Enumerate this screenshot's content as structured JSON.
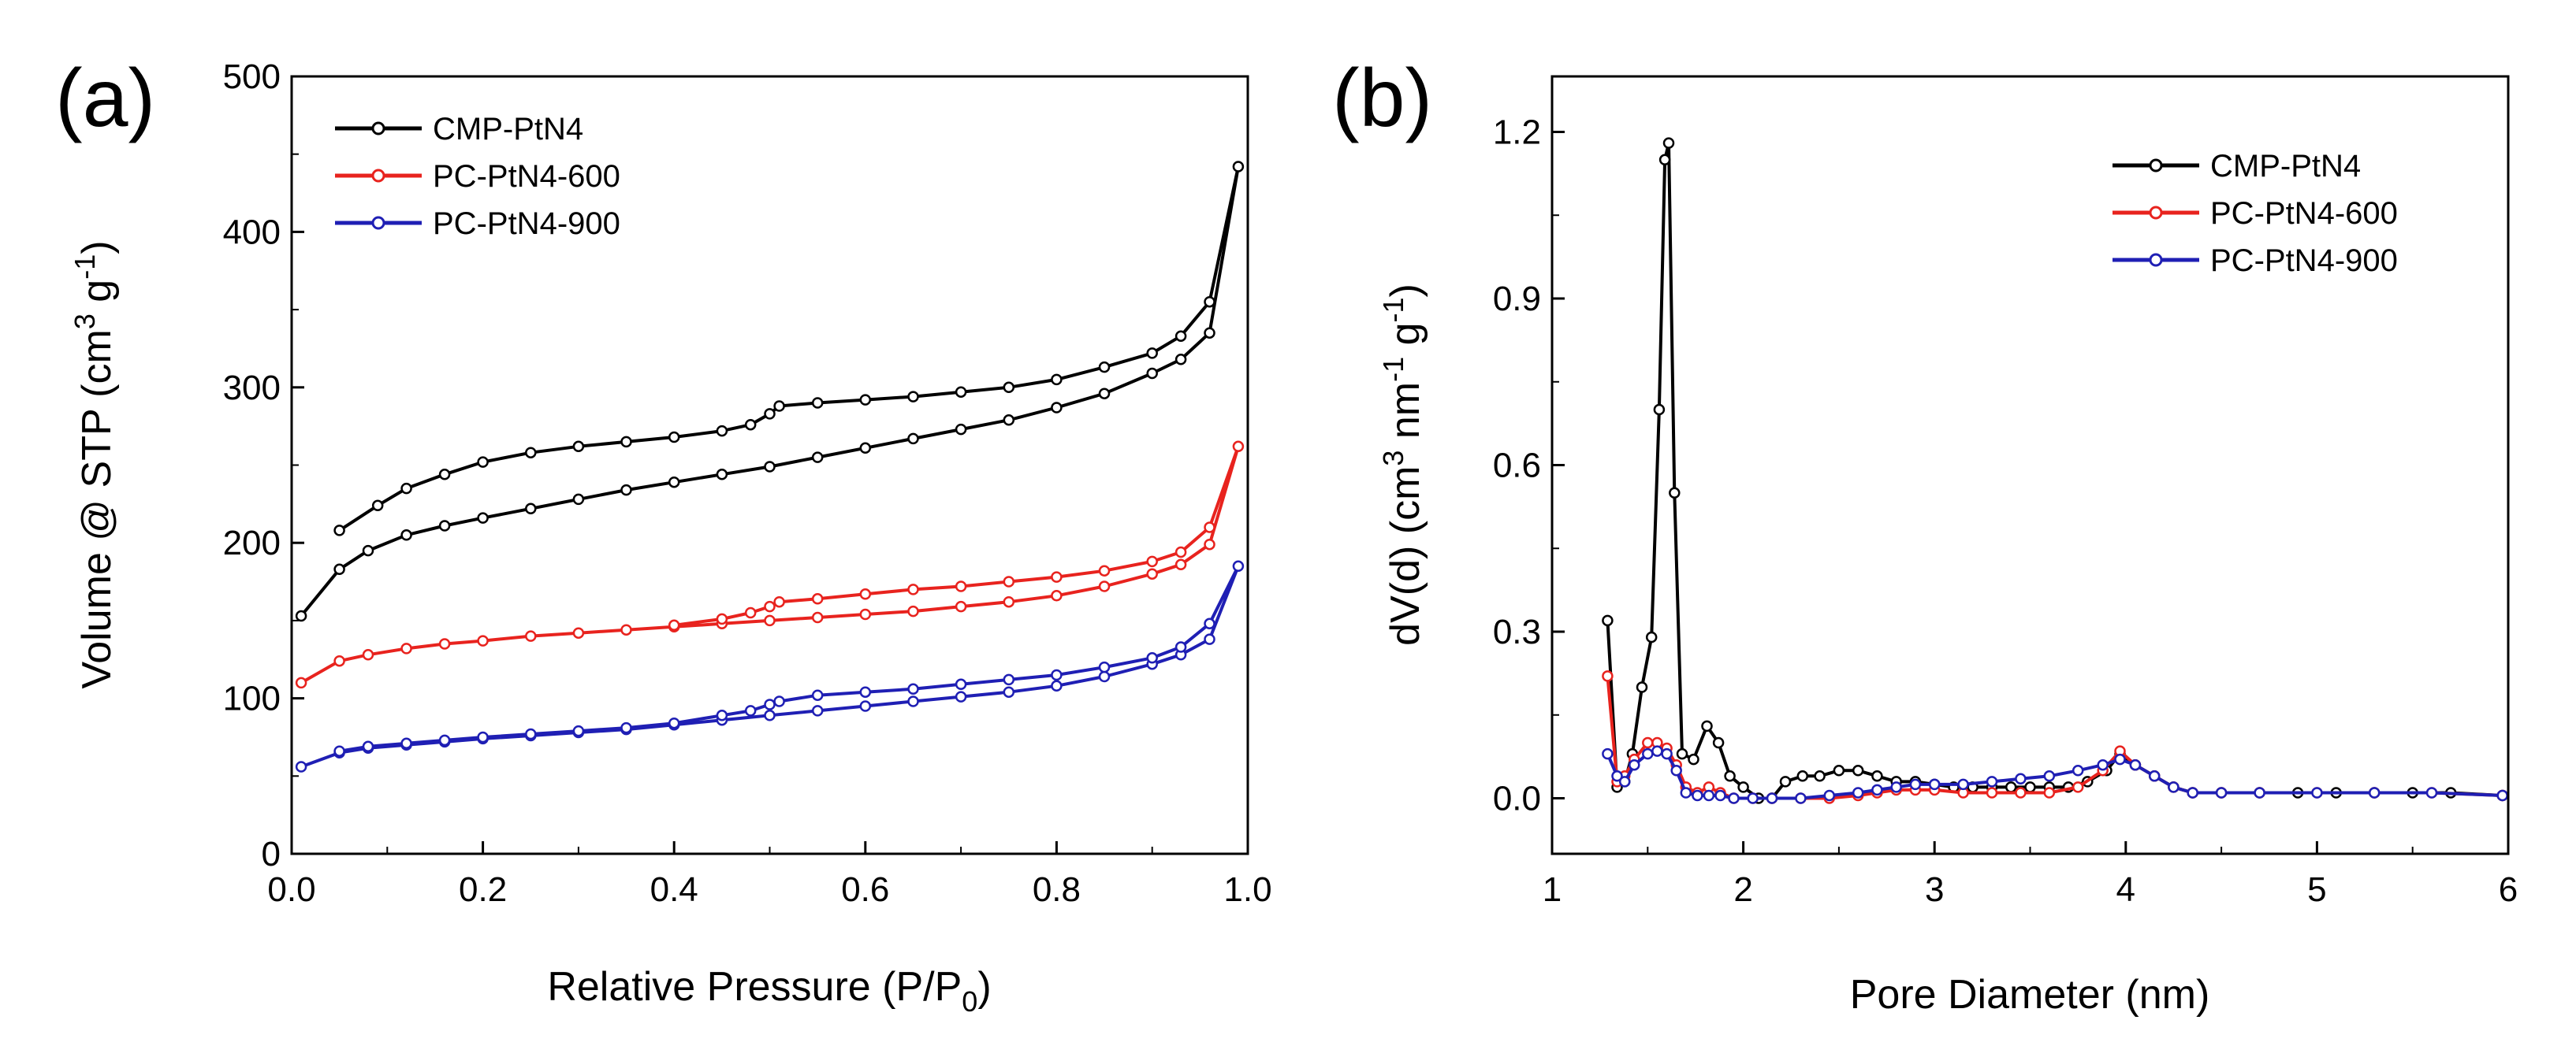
{
  "chart_data": [
    {
      "type": "line",
      "panel_label": "(a)",
      "xlabel": "Relative Pressure (P/P",
      "xlabel_sub": "0",
      "xlabel_end": ")",
      "ylabel": "Volume @ STP (cm",
      "ylabel_sup1": "3",
      "ylabel_mid": " g",
      "ylabel_sup2": "-1",
      "ylabel_end": ")",
      "xlim": [
        0.0,
        1.0
      ],
      "ylim": [
        0,
        500
      ],
      "xticks": [
        "0.0",
        "0.2",
        "0.4",
        "0.6",
        "0.8",
        "1.0"
      ],
      "yticks": [
        "0",
        "100",
        "200",
        "300",
        "400",
        "500"
      ],
      "legend_position": "top-left",
      "series": [
        {
          "name": "CMP-PtN4",
          "color": "#000000",
          "x": [
            0.01,
            0.05,
            0.08,
            0.12,
            0.16,
            0.2,
            0.25,
            0.3,
            0.35,
            0.4,
            0.45,
            0.5,
            0.55,
            0.6,
            0.65,
            0.7,
            0.75,
            0.8,
            0.85,
            0.9,
            0.93,
            0.96,
            0.99,
            0.96,
            0.93,
            0.9,
            0.85,
            0.8,
            0.75,
            0.7,
            0.65,
            0.6,
            0.55,
            0.51,
            0.5,
            0.48,
            0.45,
            0.4,
            0.35,
            0.3,
            0.25,
            0.2,
            0.16,
            0.12,
            0.09,
            0.05
          ],
          "y": [
            153,
            183,
            195,
            205,
            211,
            216,
            222,
            228,
            234,
            239,
            244,
            249,
            255,
            261,
            267,
            273,
            279,
            287,
            296,
            309,
            318,
            335,
            442,
            355,
            333,
            322,
            313,
            305,
            300,
            297,
            294,
            292,
            290,
            288,
            283,
            276,
            272,
            268,
            265,
            262,
            258,
            252,
            244,
            235,
            224,
            208
          ]
        },
        {
          "name": "PC-PtN4-600",
          "color": "#e8231e",
          "x": [
            0.01,
            0.05,
            0.08,
            0.12,
            0.16,
            0.2,
            0.25,
            0.3,
            0.35,
            0.4,
            0.45,
            0.5,
            0.55,
            0.6,
            0.65,
            0.7,
            0.75,
            0.8,
            0.85,
            0.9,
            0.93,
            0.96,
            0.99,
            0.96,
            0.93,
            0.9,
            0.85,
            0.8,
            0.75,
            0.7,
            0.65,
            0.6,
            0.55,
            0.51,
            0.5,
            0.48,
            0.45,
            0.4
          ],
          "y": [
            110,
            124,
            128,
            132,
            135,
            137,
            140,
            142,
            144,
            146,
            148,
            150,
            152,
            154,
            156,
            159,
            162,
            166,
            172,
            180,
            186,
            199,
            262,
            210,
            194,
            188,
            182,
            178,
            175,
            172,
            170,
            167,
            164,
            162,
            159,
            155,
            151,
            147
          ]
        },
        {
          "name": "PC-PtN4-900",
          "color": "#1f1fb4",
          "x": [
            0.01,
            0.05,
            0.08,
            0.12,
            0.16,
            0.2,
            0.25,
            0.3,
            0.35,
            0.4,
            0.45,
            0.5,
            0.55,
            0.6,
            0.65,
            0.7,
            0.75,
            0.8,
            0.85,
            0.9,
            0.93,
            0.96,
            0.99,
            0.96,
            0.93,
            0.9,
            0.85,
            0.8,
            0.75,
            0.7,
            0.65,
            0.6,
            0.55,
            0.51,
            0.5,
            0.48,
            0.45,
            0.4,
            0.35,
            0.3,
            0.25,
            0.2,
            0.16,
            0.12,
            0.08,
            0.05
          ],
          "y": [
            56,
            65,
            68,
            70,
            72,
            74,
            76,
            78,
            80,
            83,
            86,
            89,
            92,
            95,
            98,
            101,
            104,
            108,
            114,
            122,
            128,
            138,
            185,
            148,
            133,
            126,
            120,
            115,
            112,
            109,
            106,
            104,
            102,
            98,
            96,
            92,
            89,
            84,
            81,
            79,
            77,
            75,
            73,
            71,
            69,
            66
          ]
        }
      ]
    },
    {
      "type": "line",
      "panel_label": "(b)",
      "xlabel": "Pore Diameter (nm)",
      "ylabel": "dV(d) (cm",
      "ylabel_sup1": "3",
      "ylabel_mid": " nm",
      "ylabel_sup2": "-1",
      "ylabel_mid2": " g",
      "ylabel_sup3": "-1",
      "ylabel_end": ")",
      "xlim": [
        1,
        6
      ],
      "ylim": [
        -0.1,
        1.3
      ],
      "xticks": [
        "1",
        "2",
        "3",
        "4",
        "5",
        "6"
      ],
      "yticks": [
        "0.0",
        "0.3",
        "0.6",
        "0.9",
        "1.2"
      ],
      "legend_position": "top-right",
      "series": [
        {
          "name": "CMP-PtN4",
          "color": "#000000",
          "x": [
            1.29,
            1.34,
            1.38,
            1.42,
            1.47,
            1.52,
            1.56,
            1.59,
            1.61,
            1.64,
            1.68,
            1.74,
            1.81,
            1.87,
            1.93,
            2.0,
            2.08,
            2.15,
            2.22,
            2.31,
            2.4,
            2.5,
            2.6,
            2.7,
            2.8,
            2.9,
            3.0,
            3.1,
            3.2,
            3.3,
            3.4,
            3.5,
            3.6,
            3.7,
            3.8,
            3.9,
            3.97,
            4.05,
            4.15,
            4.25,
            4.35,
            4.5,
            4.7,
            4.9,
            5.1,
            5.3,
            5.5,
            5.7,
            5.97
          ],
          "y": [
            0.32,
            0.02,
            0.03,
            0.08,
            0.2,
            0.29,
            0.7,
            1.15,
            1.18,
            0.55,
            0.08,
            0.07,
            0.13,
            0.1,
            0.04,
            0.02,
            0.0,
            0.0,
            0.03,
            0.04,
            0.04,
            0.05,
            0.05,
            0.04,
            0.03,
            0.03,
            0.025,
            0.02,
            0.02,
            0.02,
            0.02,
            0.02,
            0.02,
            0.02,
            0.03,
            0.05,
            0.08,
            0.06,
            0.04,
            0.02,
            0.01,
            0.01,
            0.01,
            0.01,
            0.01,
            0.01,
            0.01,
            0.01,
            0.005
          ]
        },
        {
          "name": "PC-PtN4-600",
          "color": "#e8231e",
          "x": [
            1.29,
            1.34,
            1.38,
            1.43,
            1.5,
            1.55,
            1.6,
            1.65,
            1.7,
            1.76,
            1.82,
            1.88,
            1.95,
            2.05,
            2.15,
            2.3,
            2.45,
            2.6,
            2.7,
            2.8,
            2.9,
            3.0,
            3.15,
            3.3,
            3.45,
            3.6,
            3.75,
            3.88,
            3.97,
            4.05,
            4.15,
            4.25,
            4.35,
            4.5,
            4.7,
            5.0,
            5.3,
            5.6,
            5.97
          ],
          "y": [
            0.22,
            0.03,
            0.04,
            0.07,
            0.1,
            0.1,
            0.09,
            0.06,
            0.02,
            0.01,
            0.02,
            0.01,
            0.0,
            0.0,
            0.0,
            0.0,
            0.0,
            0.005,
            0.01,
            0.015,
            0.015,
            0.015,
            0.01,
            0.01,
            0.01,
            0.01,
            0.02,
            0.05,
            0.085,
            0.06,
            0.04,
            0.02,
            0.01,
            0.01,
            0.01,
            0.01,
            0.01,
            0.01,
            0.005
          ]
        },
        {
          "name": "PC-PtN4-900",
          "color": "#1f1fb4",
          "x": [
            1.29,
            1.34,
            1.38,
            1.43,
            1.5,
            1.55,
            1.6,
            1.65,
            1.7,
            1.76,
            1.82,
            1.88,
            1.95,
            2.05,
            2.15,
            2.3,
            2.45,
            2.6,
            2.7,
            2.8,
            2.9,
            3.0,
            3.15,
            3.3,
            3.45,
            3.6,
            3.75,
            3.88,
            3.97,
            4.05,
            4.15,
            4.25,
            4.35,
            4.5,
            4.7,
            5.0,
            5.3,
            5.6,
            5.97
          ],
          "y": [
            0.08,
            0.04,
            0.03,
            0.06,
            0.08,
            0.085,
            0.08,
            0.05,
            0.01,
            0.005,
            0.005,
            0.005,
            0.0,
            0.0,
            0.0,
            0.0,
            0.005,
            0.01,
            0.015,
            0.02,
            0.025,
            0.025,
            0.025,
            0.03,
            0.035,
            0.04,
            0.05,
            0.06,
            0.07,
            0.06,
            0.04,
            0.02,
            0.01,
            0.01,
            0.01,
            0.01,
            0.01,
            0.01,
            0.005
          ]
        }
      ]
    }
  ]
}
